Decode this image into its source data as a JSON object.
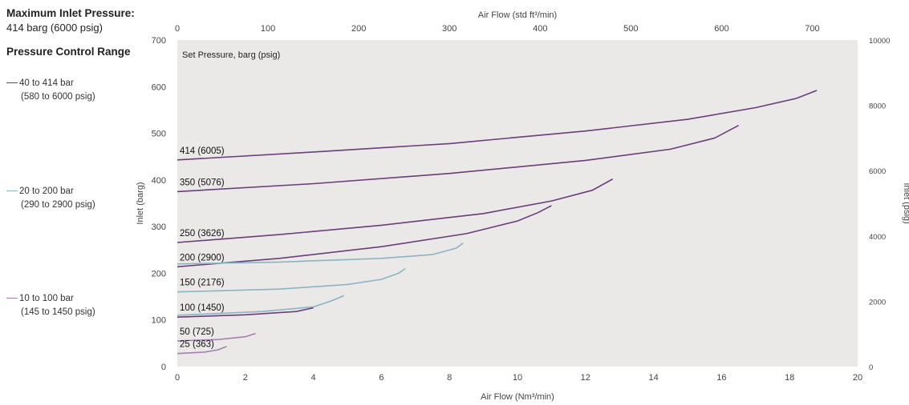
{
  "header": {
    "max_inlet_title": "Maximum Inlet Pressure:",
    "max_inlet_value": "414 barg (6000 psig)",
    "pcr_title": "Pressure Control Range"
  },
  "legend": [
    {
      "line1": "40 to 414 bar",
      "line2": "(580 to 6000 psig)",
      "color": "#6b3d7a"
    },
    {
      "line1": "20 to 200 bar",
      "line2": "(290 to 2900 psig)",
      "color": "#8cb3c2"
    },
    {
      "line1": "10 to 100 bar",
      "line2": "(145 to 1450 psig)",
      "color": "#a77fb0"
    }
  ],
  "chart_data": {
    "type": "line",
    "inner_label": "Set Pressure, barg (psig)",
    "xlabel": "Air Flow (Nm³/min)",
    "x2label": "Air Flow (std ft³/min)",
    "ylabel": "Inlet (barg)",
    "y2label": "Inlet (psig)",
    "xlim": [
      0,
      20
    ],
    "ylim": [
      0,
      700
    ],
    "x2lim": [
      0,
      750
    ],
    "y2lim": [
      0,
      10000
    ],
    "xticks": [
      0,
      2,
      4,
      6,
      8,
      10,
      12,
      14,
      16,
      18,
      20
    ],
    "yticks": [
      0,
      100,
      200,
      300,
      400,
      500,
      600,
      700
    ],
    "x2ticks": [
      0,
      100,
      200,
      300,
      400,
      500,
      600,
      700
    ],
    "y2ticks": [
      0,
      2000,
      4000,
      6000,
      8000,
      10000
    ],
    "grid": false,
    "background": "#ebe9e8",
    "series": [
      {
        "name": "414 (6005)",
        "color": "#6b3d7a",
        "points": [
          [
            0,
            443
          ],
          [
            4,
            460
          ],
          [
            8,
            478
          ],
          [
            12,
            505
          ],
          [
            15,
            530
          ],
          [
            17,
            555
          ],
          [
            18.2,
            575
          ],
          [
            18.8,
            592
          ]
        ]
      },
      {
        "name": "350 (5076)",
        "color": "#6b3d7a",
        "points": [
          [
            0,
            375
          ],
          [
            4,
            392
          ],
          [
            8,
            414
          ],
          [
            12,
            442
          ],
          [
            14.5,
            466
          ],
          [
            15.8,
            490
          ],
          [
            16.5,
            517
          ]
        ]
      },
      {
        "name": "250 (3626)",
        "color": "#6b3d7a",
        "points": [
          [
            0,
            266
          ],
          [
            3,
            283
          ],
          [
            6,
            303
          ],
          [
            9,
            328
          ],
          [
            11,
            355
          ],
          [
            12.2,
            378
          ],
          [
            12.8,
            402
          ]
        ]
      },
      {
        "name": "200 (2900)",
        "color": "#6b3d7a",
        "points": [
          [
            0,
            214
          ],
          [
            3,
            232
          ],
          [
            6,
            257
          ],
          [
            8.5,
            285
          ],
          [
            10,
            312
          ],
          [
            10.6,
            330
          ],
          [
            11,
            345
          ]
        ]
      },
      {
        "name": "",
        "color": "#8cb3c2",
        "points": [
          [
            0,
            220
          ],
          [
            3,
            224
          ],
          [
            6,
            232
          ],
          [
            7.5,
            240
          ],
          [
            8.2,
            254
          ],
          [
            8.4,
            265
          ]
        ]
      },
      {
        "name": "150 (2176)",
        "color": "#8cb3c2",
        "points": [
          [
            0,
            160
          ],
          [
            3,
            166
          ],
          [
            5,
            176
          ],
          [
            6,
            187
          ],
          [
            6.5,
            200
          ],
          [
            6.7,
            210
          ]
        ]
      },
      {
        "name": "",
        "color": "#8cb3c2",
        "points": [
          [
            0,
            110
          ],
          [
            2.5,
            118
          ],
          [
            4,
            128
          ],
          [
            4.5,
            140
          ],
          [
            4.9,
            152
          ]
        ]
      },
      {
        "name": "100 (1450)",
        "color": "#6b3d7a",
        "points": [
          [
            0,
            106
          ],
          [
            2,
            111
          ],
          [
            3.5,
            118
          ],
          [
            4,
            126
          ]
        ]
      },
      {
        "name": "50 (725)",
        "color": "#a77fb0",
        "points": [
          [
            0,
            55
          ],
          [
            1.2,
            58
          ],
          [
            2,
            64
          ],
          [
            2.3,
            71
          ]
        ]
      },
      {
        "name": "25 (363)",
        "color": "#a77fb0",
        "points": [
          [
            0,
            28
          ],
          [
            0.8,
            31
          ],
          [
            1.2,
            36
          ],
          [
            1.45,
            43
          ]
        ]
      }
    ]
  }
}
